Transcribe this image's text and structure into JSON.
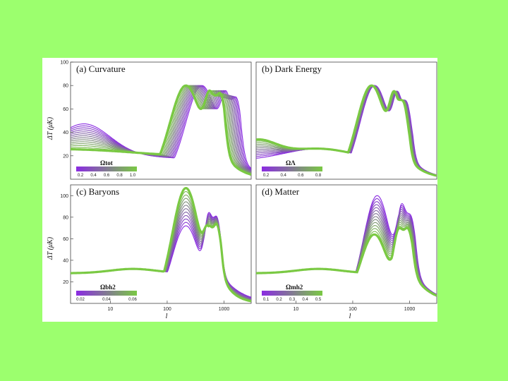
{
  "colors": {
    "background": "#9cff6e",
    "curve_start": "#8a2be2",
    "curve_end": "#7ac943"
  },
  "ylabel": "ΔT (μK)",
  "xlabel": "l",
  "chart_data": [
    {
      "type": "line",
      "title": "(a) Curvature",
      "colorbar_label": "Ωtot",
      "colorbar_ticks": [
        "0.2",
        "0.4",
        "0.6",
        "0.8",
        "1.0"
      ],
      "xscale": "log",
      "xlim": [
        2,
        3000
      ],
      "ylim": [
        0,
        100
      ],
      "yticks": [
        "20",
        "40",
        "60",
        "80",
        "100"
      ],
      "xticks": [],
      "n_curves": 14,
      "param_range": [
        0.2,
        1.0
      ],
      "family": "curvature"
    },
    {
      "type": "line",
      "title": "(b) Dark Energy",
      "colorbar_label": "ΩΛ",
      "colorbar_ticks": [
        "0.2",
        "0.4",
        "0.6",
        "0.8"
      ],
      "xscale": "log",
      "xlim": [
        2,
        3000
      ],
      "ylim": [
        0,
        100
      ],
      "yticks": [],
      "xticks": [],
      "n_curves": 12,
      "param_range": [
        0.0,
        0.9
      ],
      "family": "darkenergy"
    },
    {
      "type": "line",
      "title": "(c) Baryons",
      "colorbar_label": "Ωbh2",
      "colorbar_ticks": [
        "0.02",
        "0.04",
        "0.06"
      ],
      "xscale": "log",
      "xlim": [
        2,
        3000
      ],
      "ylim": [
        0,
        110
      ],
      "yticks": [
        "20",
        "40",
        "60",
        "80",
        "100"
      ],
      "xticks": [
        "10",
        "100",
        "1000"
      ],
      "n_curves": 12,
      "param_range": [
        0.01,
        0.06
      ],
      "family": "baryons"
    },
    {
      "type": "line",
      "title": "(d) Matter",
      "colorbar_label": "Ωmh2",
      "colorbar_ticks": [
        "0.1",
        "0.2",
        "0.3",
        "0.4",
        "0.5"
      ],
      "xscale": "log",
      "xlim": [
        2,
        3000
      ],
      "ylim": [
        0,
        110
      ],
      "yticks": [],
      "xticks": [
        "10",
        "100",
        "1000"
      ],
      "n_curves": 14,
      "param_range": [
        0.1,
        0.5
      ],
      "family": "matter"
    }
  ]
}
